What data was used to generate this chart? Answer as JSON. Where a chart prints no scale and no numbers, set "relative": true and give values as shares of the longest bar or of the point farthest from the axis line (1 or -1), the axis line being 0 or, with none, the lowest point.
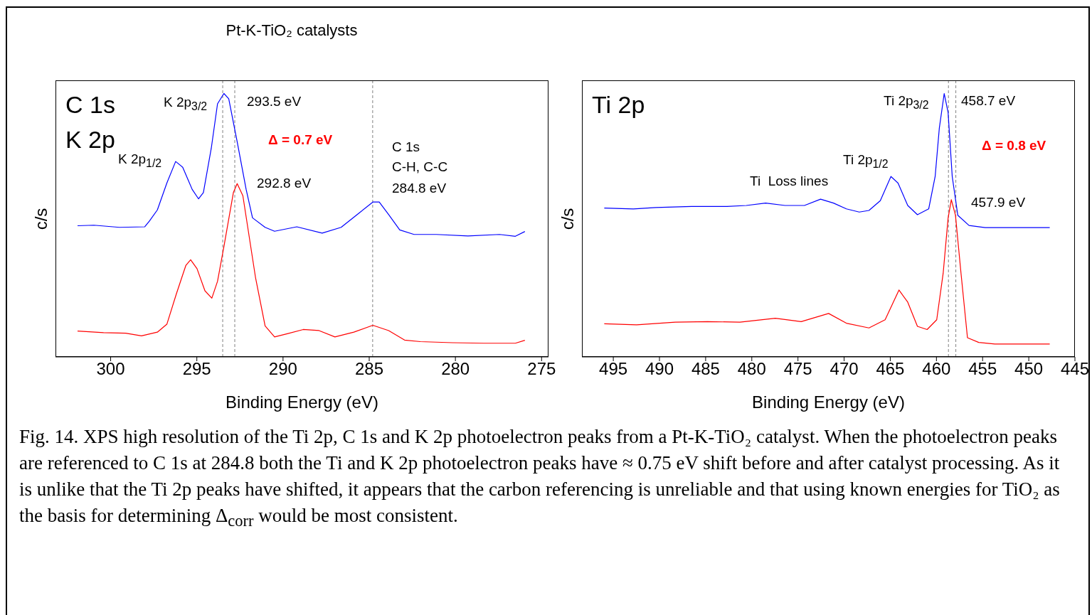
{
  "chart_data": [
    {
      "type": "line",
      "title": "C 1s\nK 2p",
      "xlabel": "Binding Energy (eV)",
      "ylabel": "c/s",
      "relative": true,
      "xlim": [
        303.2,
        274.6
      ],
      "xticks": [
        300,
        295,
        290,
        285,
        280,
        275
      ],
      "grid": false,
      "legend": false,
      "marker": "none",
      "line_style": "solid",
      "series": [
        {
          "color": "#0000ff",
          "x": [
            301.92,
            300.97,
            299.49,
            298.02,
            297.75,
            297.29,
            296.74,
            296.23,
            295.82,
            295.27,
            294.9,
            294.62,
            294.16,
            293.8,
            293.43,
            293.15,
            292.66,
            292.14,
            291.77,
            291.04,
            290.49,
            289.2,
            287.73,
            286.63,
            285.71,
            284.79,
            284.42,
            283.87,
            283.23,
            282.4,
            281.11,
            279.27,
            277.44,
            276.52,
            275.97
          ],
          "values": [
            0.498,
            0.5,
            0.492,
            0.494,
            0.516,
            0.558,
            0.66,
            0.742,
            0.72,
            0.636,
            0.6,
            0.624,
            0.793,
            0.961,
            1.0,
            0.98,
            0.817,
            0.636,
            0.528,
            0.492,
            0.477,
            0.494,
            0.47,
            0.492,
            0.54,
            0.588,
            0.588,
            0.54,
            0.482,
            0.465,
            0.465,
            0.459,
            0.465,
            0.458,
            0.476
          ]
        },
        {
          "color": "#ff0000",
          "x": [
            301.92,
            300.41,
            299.13,
            298.21,
            297.29,
            296.74,
            296.19,
            295.64,
            295.36,
            294.99,
            294.53,
            294.13,
            293.8,
            293.43,
            292.88,
            292.66,
            292.33,
            291.59,
            291.04,
            290.49,
            289.75,
            288.83,
            287.91,
            286.99,
            285.89,
            284.79,
            283.87,
            282.95,
            282.03,
            280.19,
            278.36,
            276.52,
            275.97
          ],
          "values": [
            0.098,
            0.092,
            0.09,
            0.08,
            0.094,
            0.124,
            0.239,
            0.347,
            0.369,
            0.335,
            0.251,
            0.223,
            0.287,
            0.419,
            0.624,
            0.658,
            0.612,
            0.299,
            0.118,
            0.076,
            0.088,
            0.104,
            0.1,
            0.076,
            0.094,
            0.12,
            0.1,
            0.064,
            0.058,
            0.054,
            0.052,
            0.052,
            0.063
          ]
        }
      ],
      "ref_lines": [
        {
          "axis": "x",
          "value": 293.5,
          "color": "#808080",
          "line_style": "dashed"
        },
        {
          "axis": "x",
          "value": 292.8,
          "color": "#808080",
          "line_style": "dashed"
        },
        {
          "axis": "x",
          "value": 284.8,
          "color": "#808080",
          "line_style": "dashed"
        }
      ],
      "annotations": [
        "Pt-K-TiO₂ catalysts",
        "K 2p$_{3/2}$",
        "293.5 eV",
        "Δ = 0.7 eV",
        "K 2p$_{1/2}$",
        "292.8 eV",
        "C 1s",
        "C-H, C-C",
        "284.8 eV"
      ]
    },
    {
      "type": "line",
      "title": "Ti 2p",
      "xlabel": "Binding Energy (eV)",
      "ylabel": "c/s",
      "relative": true,
      "xlim": [
        498.4,
        445
      ],
      "xticks": [
        495,
        490,
        485,
        480,
        475,
        470,
        465,
        460,
        455,
        450,
        445
      ],
      "grid": false,
      "legend": false,
      "marker": "none",
      "line_style": "solid",
      "series": [
        {
          "color": "#0000ff",
          "x": [
            495.98,
            492.83,
            490.38,
            486.54,
            482.69,
            480.59,
            478.5,
            476.4,
            474.3,
            472.55,
            471.15,
            469.76,
            468.36,
            467.31,
            466.08,
            464.93,
            464.16,
            463.11,
            462.06,
            460.84,
            460.14,
            459.69,
            459.16,
            458.74,
            458.29,
            457.69,
            456.47,
            454.72,
            451.57,
            447.73
          ],
          "values": [
            0.565,
            0.562,
            0.567,
            0.571,
            0.571,
            0.575,
            0.584,
            0.575,
            0.575,
            0.599,
            0.584,
            0.562,
            0.55,
            0.556,
            0.593,
            0.685,
            0.66,
            0.575,
            0.54,
            0.562,
            0.685,
            0.868,
            1.0,
            0.929,
            0.685,
            0.538,
            0.499,
            0.491,
            0.491,
            0.491
          ]
        },
        {
          "color": "#ff0000",
          "x": [
            495.98,
            492.48,
            488.29,
            484.79,
            481.29,
            477.45,
            474.65,
            471.68,
            469.76,
            467.31,
            465.56,
            464.06,
            463.11,
            462.06,
            461.01,
            459.97,
            459.27,
            458.74,
            458.39,
            457.94,
            457.34,
            456.64,
            455.42,
            453.67,
            449.83,
            447.73
          ],
          "values": [
            0.126,
            0.122,
            0.132,
            0.134,
            0.132,
            0.147,
            0.134,
            0.165,
            0.128,
            0.11,
            0.141,
            0.254,
            0.208,
            0.116,
            0.104,
            0.141,
            0.318,
            0.526,
            0.597,
            0.538,
            0.318,
            0.073,
            0.055,
            0.049,
            0.049,
            0.049
          ]
        }
      ],
      "ref_lines": [
        {
          "axis": "x",
          "value": 458.7,
          "color": "#808080",
          "line_style": "dashed"
        },
        {
          "axis": "x",
          "value": 457.9,
          "color": "#808080",
          "line_style": "dashed"
        }
      ],
      "annotations": [
        "Fig. 14. XPS high resolution of the Ti 2p, C 1s and K 2p photoelectron peaks from a Pt-K-TiO₂ catalyst. When the photoelectron peaks are referenced to C 1s at 284.8 both the Ti and K 2p photoelectron peaks have ≈ 0.75 eV shift before and after catalyst processing.  As it is unlike that the Ti 2p peaks have shifted, it appears that the carbon referencing is unreliable and that using known energies for TiO₂ as the basis for determining Δ$_{corr}$ would be most consistent.",
        "Ti 2p$_{3/2}$",
        "458.7 eV",
        "Δ = 0.8 eV",
        "Ti 2p$_{1/2}$",
        "Ti  Loss lines",
        "457.9 eV"
      ]
    }
  ]
}
